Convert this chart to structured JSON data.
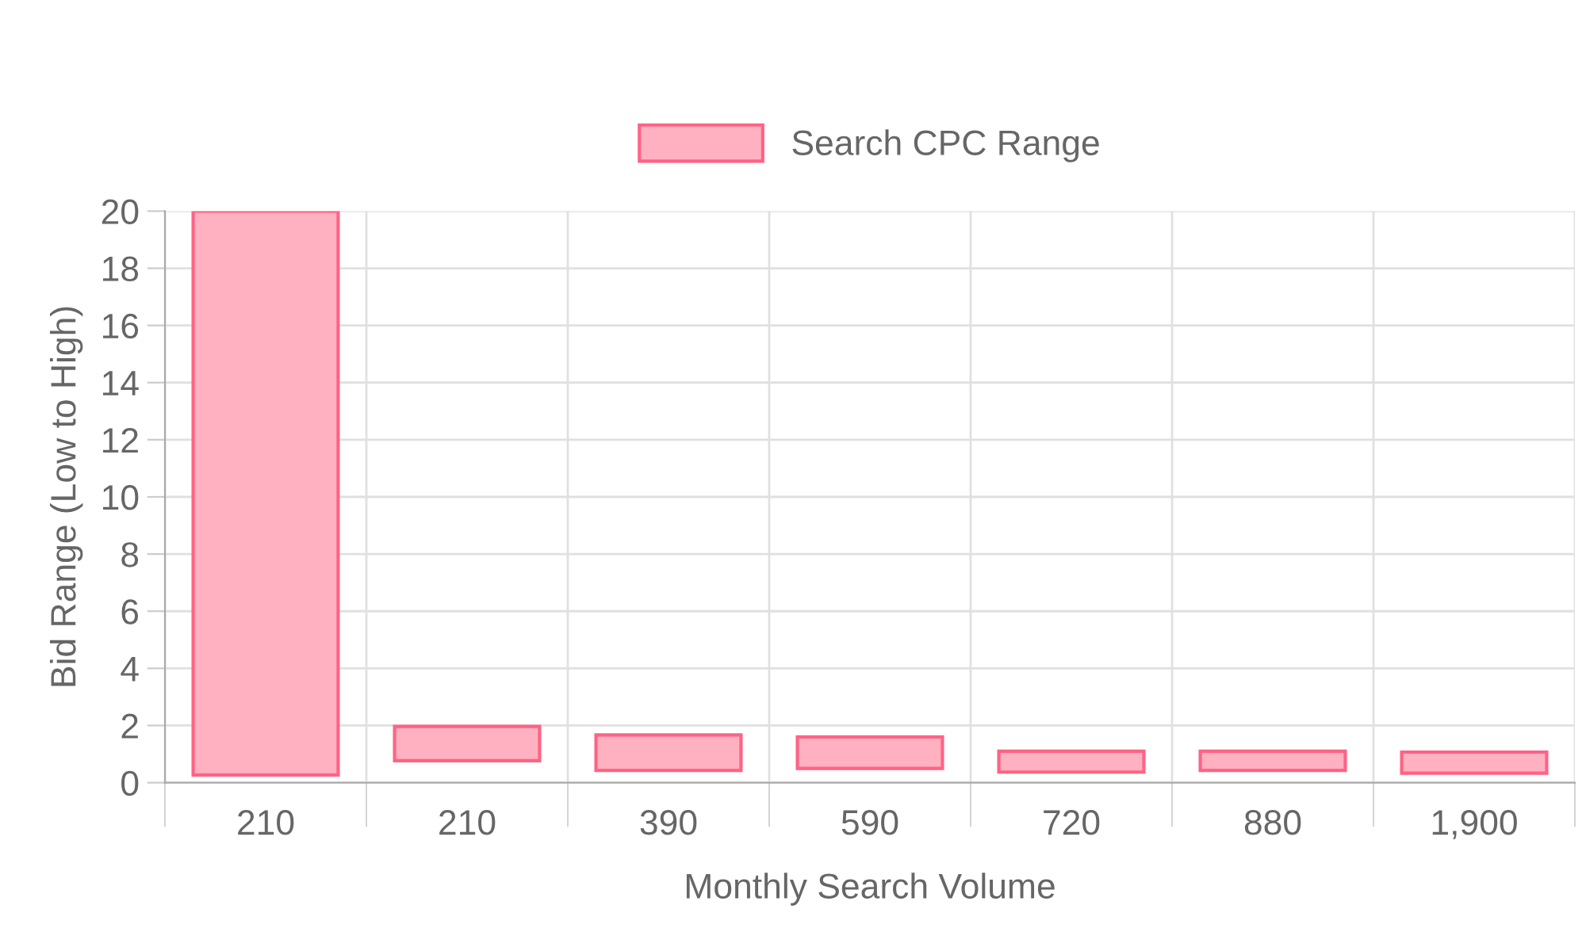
{
  "chart_data": {
    "type": "bar",
    "xlabel": "Monthly Search Volume",
    "ylabel": "Bid Range (Low to High)",
    "categories": [
      "210",
      "210",
      "390",
      "590",
      "720",
      "880",
      "1,900"
    ],
    "series": [
      {
        "name": "Search CPC Range",
        "color": "#ffb1c1",
        "base": [
          0.27,
          0.77,
          0.43,
          0.5,
          0.37,
          0.43,
          0.33
        ],
        "values": [
          19.73,
          1.2,
          1.24,
          1.1,
          0.73,
          0.67,
          0.74
        ]
      }
    ],
    "ylim": [
      0,
      20
    ],
    "yticks": [
      0,
      2,
      4,
      6,
      8,
      10,
      12,
      14,
      16,
      18,
      20
    ],
    "grid": true,
    "legend": "top"
  }
}
